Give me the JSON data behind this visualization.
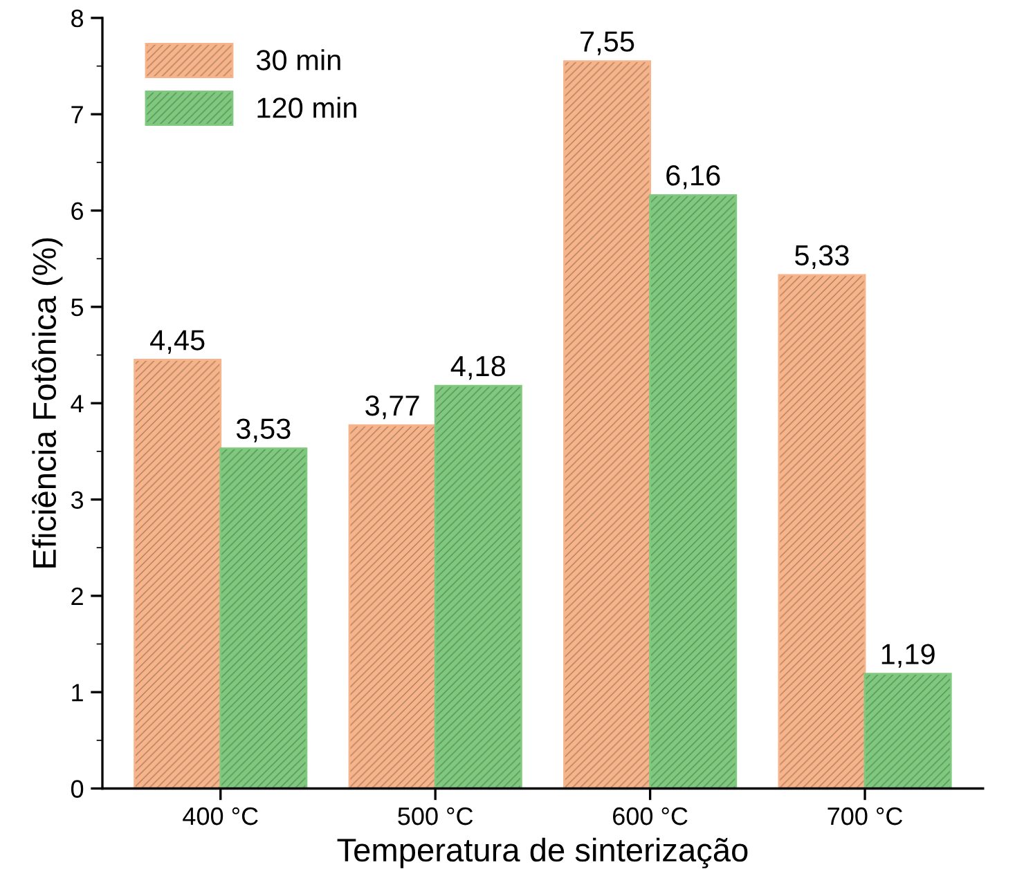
{
  "chart_data": {
    "type": "bar",
    "xlabel": "Temperatura de sinterização",
    "ylabel": "Eficiência Fotônica (%)",
    "categories": [
      "400 °C",
      "500 °C",
      "600 °C",
      "700 °C"
    ],
    "series": [
      {
        "name": "30 min",
        "color": "#f7b48a",
        "values": [
          4.45,
          3.77,
          7.55,
          5.33
        ],
        "value_labels": [
          "4,45",
          "3,77",
          "7,55",
          "5,33"
        ]
      },
      {
        "name": "120 min",
        "color": "#7fc97f",
        "values": [
          3.53,
          4.18,
          6.16,
          1.19
        ],
        "value_labels": [
          "3,53",
          "4,18",
          "6,16",
          "1,19"
        ]
      }
    ],
    "ylim": [
      0,
      8
    ],
    "yticks": [
      0,
      1,
      2,
      3,
      4,
      5,
      6,
      7,
      8
    ],
    "grid": false,
    "legend": "top left"
  }
}
